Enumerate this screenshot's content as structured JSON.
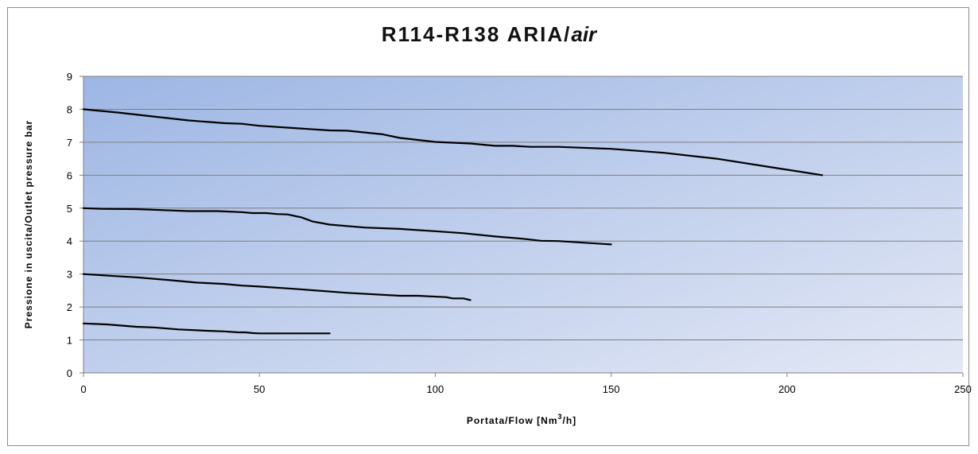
{
  "chart_data": {
    "type": "line",
    "title": "R114-R138 ARIA/",
    "title_italic": "air",
    "xlabel": "Portata/Flow [Nm",
    "xlabel_sup": "3",
    "xlabel_suffix": "/h]",
    "ylabel": "Pressione in uscita/Outlet pressure bar",
    "xlim": [
      0,
      250
    ],
    "ylim": [
      0,
      9
    ],
    "x_ticks": [
      0,
      50,
      100,
      150,
      200,
      250
    ],
    "y_ticks": [
      0,
      1,
      2,
      3,
      4,
      5,
      6,
      7,
      8,
      9
    ],
    "grid": "horizontal",
    "legend": "none",
    "line_color": "#000000",
    "background_gradient": [
      "#9db6e4",
      "#e3e8f5"
    ],
    "series": [
      {
        "x": [
          0,
          10,
          20,
          30,
          40,
          45,
          50,
          60,
          70,
          75,
          85,
          90,
          100,
          110,
          117,
          122,
          127,
          135,
          150,
          165,
          180,
          195,
          210
        ],
        "y": [
          8.0,
          7.9,
          7.78,
          7.66,
          7.58,
          7.56,
          7.5,
          7.43,
          7.36,
          7.35,
          7.24,
          7.13,
          7.01,
          6.96,
          6.89,
          6.89,
          6.86,
          6.86,
          6.8,
          6.68,
          6.5,
          6.25,
          6.0
        ]
      },
      {
        "x": [
          0,
          5,
          15,
          25,
          30,
          38,
          45,
          48,
          52,
          55,
          58,
          62,
          65,
          70,
          80,
          90,
          100,
          108,
          117,
          125,
          130,
          135,
          150
        ],
        "y": [
          5.0,
          4.98,
          4.97,
          4.93,
          4.91,
          4.91,
          4.88,
          4.85,
          4.85,
          4.82,
          4.81,
          4.72,
          4.6,
          4.5,
          4.41,
          4.37,
          4.3,
          4.24,
          4.14,
          4.07,
          4.01,
          4.0,
          3.9
        ]
      },
      {
        "x": [
          0,
          7,
          15,
          25,
          32,
          40,
          45,
          50,
          60,
          75,
          90,
          95,
          103,
          105,
          108,
          110
        ],
        "y": [
          3.0,
          2.95,
          2.9,
          2.81,
          2.74,
          2.7,
          2.65,
          2.62,
          2.55,
          2.43,
          2.34,
          2.34,
          2.3,
          2.26,
          2.26,
          2.21
        ]
      },
      {
        "x": [
          0,
          7,
          15,
          20,
          27,
          35,
          40,
          44,
          46,
          48,
          50,
          60,
          70
        ],
        "y": [
          1.5,
          1.47,
          1.4,
          1.38,
          1.32,
          1.28,
          1.26,
          1.23,
          1.23,
          1.21,
          1.2,
          1.2,
          1.2
        ]
      }
    ]
  }
}
